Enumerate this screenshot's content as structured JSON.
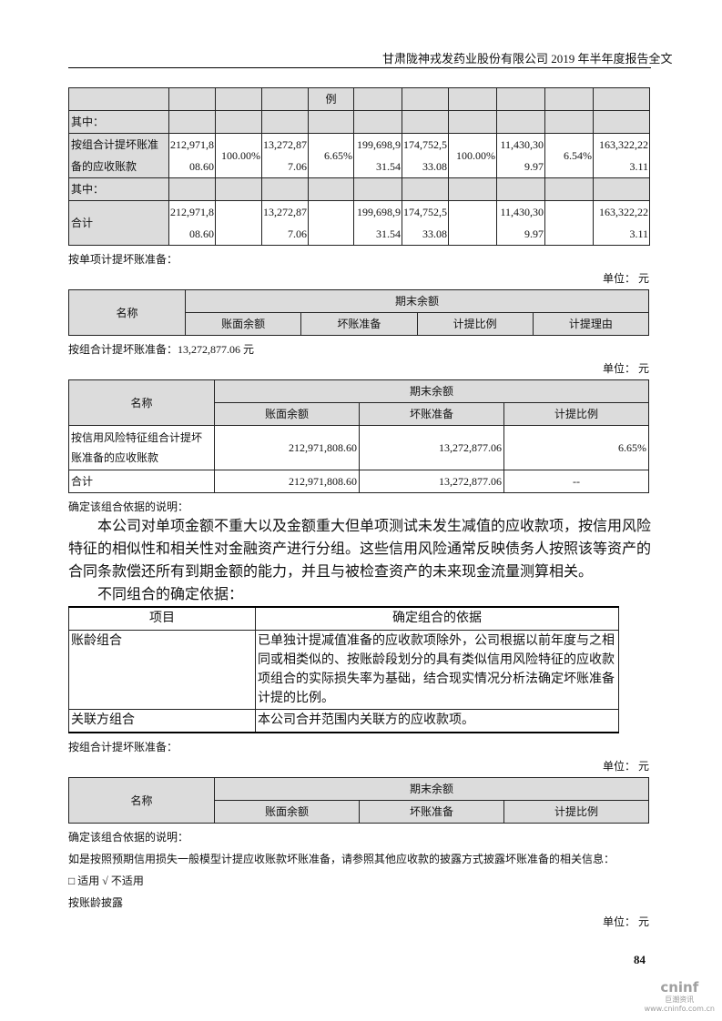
{
  "header": {
    "title": "甘肃陇神戎发药业股份有限公司 2019 年半年度报告全文"
  },
  "table1": {
    "header_cell": "例",
    "rows": [
      {
        "label": "其中：",
        "values": [
          "",
          "",
          "",
          "",
          "",
          "",
          "",
          "",
          "",
          ""
        ]
      },
      {
        "label": "按组合计提坏账准备的应收账款",
        "values": [
          "212,971,808.60",
          "100.00%",
          "13,272,877.06",
          "6.65%",
          "199,698,931.54",
          "174,752,533.08",
          "100.00%",
          "11,430,309.97",
          "6.54%",
          "163,322,223.11"
        ]
      },
      {
        "label": "其中：",
        "values": [
          "",
          "",
          "",
          "",
          "",
          "",
          "",
          "",
          "",
          ""
        ]
      },
      {
        "label": "合计",
        "values": [
          "212,971,808.60",
          "",
          "13,272,877.06",
          "",
          "199,698,931.54",
          "174,752,533.08",
          "",
          "11,430,309.97",
          "",
          "163,322,223.11"
        ]
      }
    ]
  },
  "single_title": "按单项计提坏账准备：",
  "unit": "单位：  元",
  "table2": {
    "name": "名称",
    "group": "期末余额",
    "cols": [
      "账面余额",
      "坏账准备",
      "计提比例",
      "计提理由"
    ]
  },
  "combo_title": "按组合计提坏账准备：13,272,877.06 元",
  "table3": {
    "name": "名称",
    "group": "期末余额",
    "cols": [
      "账面余额",
      "坏账准备",
      "计提比例"
    ],
    "rows": [
      {
        "label": "按信用风险特征组合计提坏账准备的应收账款",
        "values": [
          "212,971,808.60",
          "13,272,877.06",
          "6.65%"
        ]
      },
      {
        "label": "合计",
        "values": [
          "212,971,808.60",
          "13,272,877.06",
          "--"
        ]
      }
    ]
  },
  "basis_note": "确定该组合依据的说明：",
  "paragraph": "本公司对单项金额不重大以及金额重大但单项测试未发生减值的应收款项，按信用风险特征的相似性和相关性对金融资产进行分组。这些信用风险通常反映债务人按照该等资产的合同条款偿还所有到期金额的能力，并且与被检查资产的未来现金流量测算相关。",
  "diff_title": "不同组合的确定依据：",
  "table4": {
    "cols": [
      "项目",
      "确定组合的依据"
    ],
    "rows": [
      {
        "item": "账龄组合",
        "basis": "已单独计提减值准备的应收款项除外，公司根据以前年度与之相同或相类似的、按账龄段划分的具有类似信用风险特征的应收款项组合的实际损失率为基础，结合现实情况分析法确定坏账准备计提的比例。"
      },
      {
        "item": "关联方组合",
        "basis": "本公司合并范围内关联方的应收款项。"
      }
    ]
  },
  "combo_title2": "按组合计提坏账准备：",
  "table5": {
    "name": "名称",
    "group": "期末余额",
    "cols": [
      "账面余额",
      "坏账准备",
      "计提比例"
    ]
  },
  "basis_note2": "确定该组合依据的说明：",
  "ecl_note": "如是按照预期信用损失一般模型计提应收账款坏账准备，请参照其他应收款的披露方式披露坏账准备的相关信息：",
  "applicable": {
    "box": "□",
    "yes": "适用",
    "check": "√",
    "no": "不适用"
  },
  "aging_title": "按账龄披露",
  "page_number": "84",
  "logo": {
    "brand": "cninf",
    "cn": "巨潮资讯",
    "url": "www.cninfo.com.cn"
  }
}
